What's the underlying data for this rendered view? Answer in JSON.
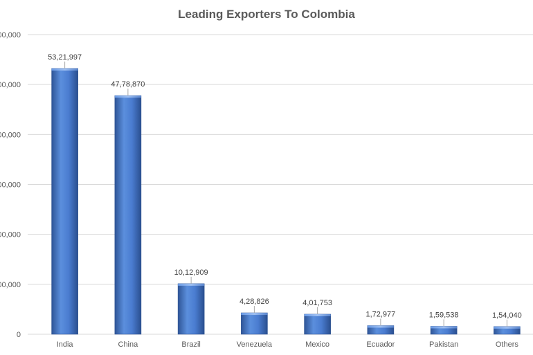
{
  "chart_data": {
    "type": "bar",
    "title": "Leading Exporters To Colombia",
    "xlabel": "",
    "ylabel": "",
    "ylim": [
      0,
      6000000
    ],
    "y_ticks": [
      0,
      1000000,
      2000000,
      3000000,
      4000000,
      5000000,
      6000000
    ],
    "y_tick_labels": [
      "0",
      ",00,000",
      ",00,000",
      ",00,000",
      ",00,000",
      ",00,000",
      ",00,000"
    ],
    "grid": true,
    "legend": "none",
    "categories": [
      "India",
      "China",
      "Brazil",
      "Venezuela",
      "Mexico",
      "Ecuador",
      "Pakistan",
      "Others"
    ],
    "values": [
      5321997,
      4778870,
      1012909,
      428826,
      401753,
      172977,
      159538,
      154040
    ],
    "data_labels": [
      "53,21,997",
      "47,78,870",
      "10,12,909",
      "4,28,826",
      "4,01,753",
      "1,72,977",
      "1,59,538",
      "1,54,040"
    ],
    "colors": {
      "bar": "#4472c4",
      "bar_dark": "#2f5597",
      "bar_light": "#5b8fdd",
      "grid": "#d9d9d9",
      "text": "#595959"
    }
  }
}
